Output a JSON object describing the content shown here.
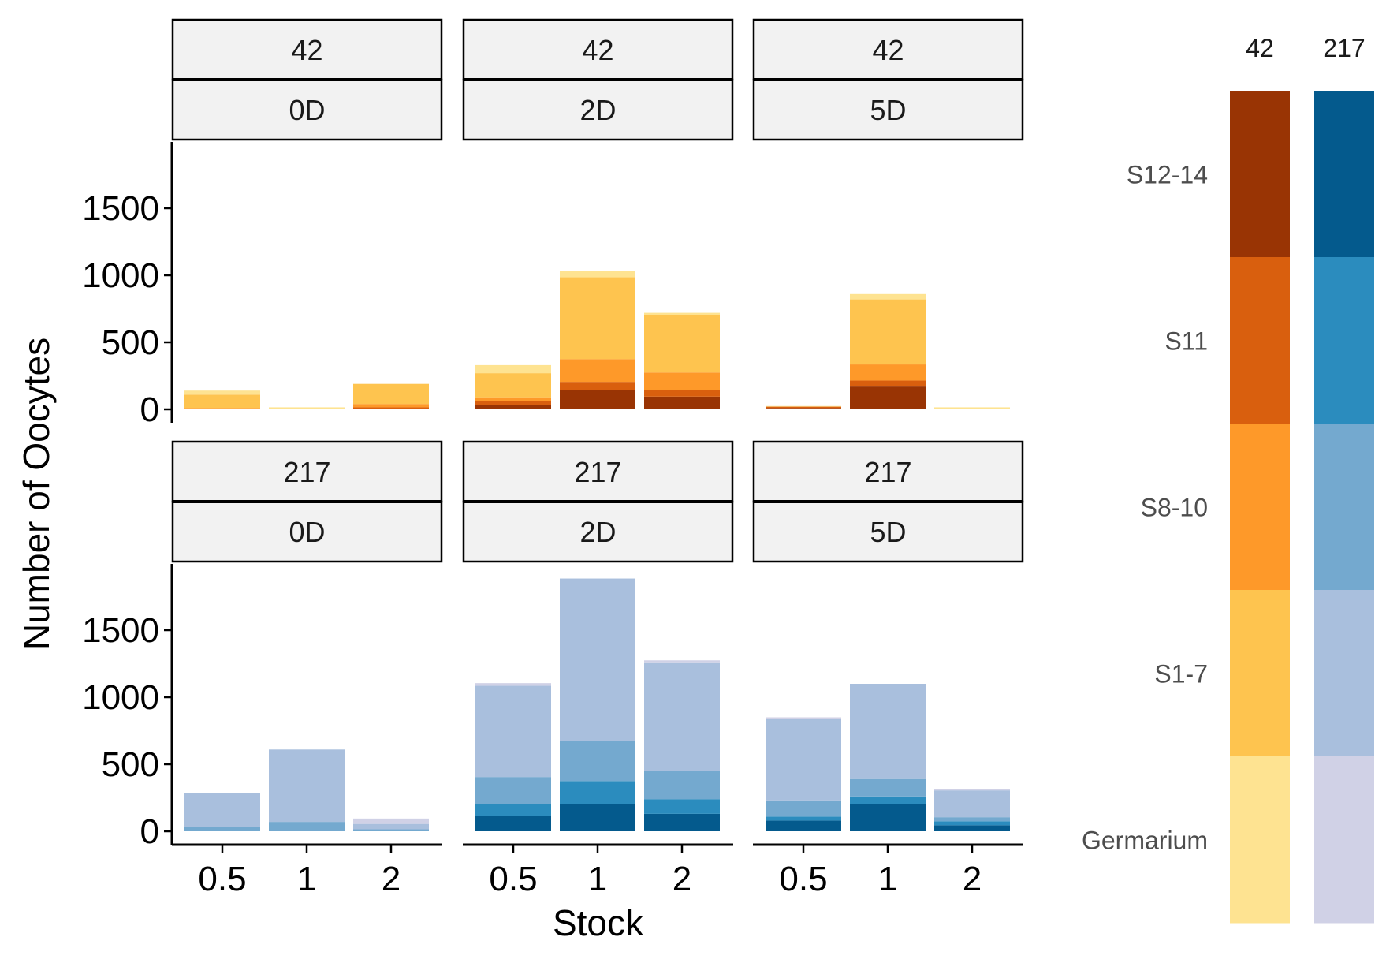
{
  "chart_data": {
    "type": "bar",
    "stacked": true,
    "facet_rows": [
      "42",
      "217"
    ],
    "facet_cols": [
      "0D",
      "2D",
      "5D"
    ],
    "categories": [
      "0.5",
      "1",
      "2"
    ],
    "xlabel": "Stock",
    "ylabel": "Number of Oocytes",
    "ylim": [
      0,
      1900
    ],
    "y_ticks": [
      0,
      500,
      1000,
      1500
    ],
    "grid": false,
    "stack_order": [
      "S12-14",
      "S11",
      "S8-10",
      "S1-7",
      "Germarium"
    ],
    "legend": {
      "placement": "right",
      "columns": [
        "42",
        "217"
      ],
      "labels": [
        "S12-14",
        "S11",
        "S8-10",
        "S1-7",
        "Germarium"
      ]
    },
    "colors": {
      "42": {
        "S12-14": "#993404",
        "S11": "#D95F0E",
        "S8-10": "#FE9929",
        "S1-7": "#FEC44F",
        "Germarium": "#FEE391"
      },
      "217": {
        "S12-14": "#045A8D",
        "S11": "#2B8CBE",
        "S8-10": "#74A9CF",
        "S1-7": "#A9BFDD",
        "Germarium": "#D0D1E6"
      }
    },
    "panels": [
      {
        "row": "42",
        "col": "0D",
        "bars": [
          {
            "S12-14": 0,
            "S11": 5,
            "S8-10": 5,
            "S1-7": 100,
            "Germarium": 30
          },
          {
            "S12-14": 0,
            "S11": 0,
            "S8-10": 0,
            "S1-7": 0,
            "Germarium": 15
          },
          {
            "S12-14": 0,
            "S11": 15,
            "S8-10": 25,
            "S1-7": 150,
            "Germarium": 0
          }
        ]
      },
      {
        "row": "42",
        "col": "2D",
        "bars": [
          {
            "S12-14": 30,
            "S11": 30,
            "S8-10": 30,
            "S1-7": 180,
            "Germarium": 60
          },
          {
            "S12-14": 145,
            "S11": 60,
            "S8-10": 170,
            "S1-7": 610,
            "Germarium": 45
          },
          {
            "S12-14": 95,
            "S11": 50,
            "S8-10": 130,
            "S1-7": 430,
            "Germarium": 15
          }
        ]
      },
      {
        "row": "42",
        "col": "5D",
        "bars": [
          {
            "S12-14": 10,
            "S11": 10,
            "S8-10": 0,
            "S1-7": 0,
            "Germarium": 5
          },
          {
            "S12-14": 170,
            "S11": 45,
            "S8-10": 120,
            "S1-7": 485,
            "Germarium": 40
          },
          {
            "S12-14": 0,
            "S11": 0,
            "S8-10": 0,
            "S1-7": 0,
            "Germarium": 15
          }
        ]
      },
      {
        "row": "217",
        "col": "0D",
        "bars": [
          {
            "S12-14": 0,
            "S11": 0,
            "S8-10": 30,
            "S1-7": 255,
            "Germarium": 0
          },
          {
            "S12-14": 0,
            "S11": 0,
            "S8-10": 70,
            "S1-7": 540,
            "Germarium": 0
          },
          {
            "S12-14": 0,
            "S11": 0,
            "S8-10": 15,
            "S1-7": 40,
            "Germarium": 40
          }
        ]
      },
      {
        "row": "217",
        "col": "2D",
        "bars": [
          {
            "S12-14": 115,
            "S11": 90,
            "S8-10": 200,
            "S1-7": 680,
            "Germarium": 20
          },
          {
            "S12-14": 200,
            "S11": 175,
            "S8-10": 300,
            "S1-7": 1210,
            "Germarium": 0
          },
          {
            "S12-14": 130,
            "S11": 110,
            "S8-10": 210,
            "S1-7": 810,
            "Germarium": 15
          }
        ]
      },
      {
        "row": "217",
        "col": "5D",
        "bars": [
          {
            "S12-14": 80,
            "S11": 30,
            "S8-10": 120,
            "S1-7": 610,
            "Germarium": 10
          },
          {
            "S12-14": 200,
            "S11": 60,
            "S8-10": 130,
            "S1-7": 710,
            "Germarium": 0
          },
          {
            "S12-14": 45,
            "S11": 30,
            "S8-10": 30,
            "S1-7": 200,
            "Germarium": 10
          }
        ]
      }
    ]
  }
}
